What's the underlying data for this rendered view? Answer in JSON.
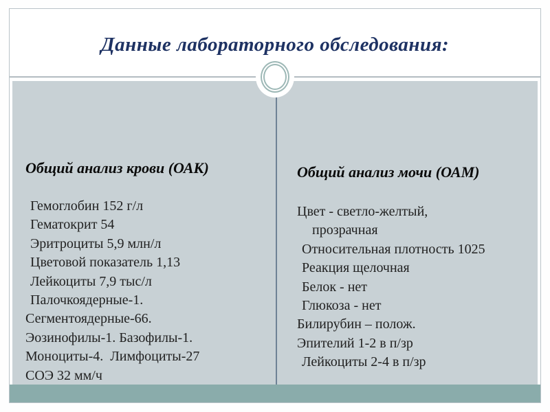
{
  "slide": {
    "title": "Данные лабораторного обследования:",
    "panels": {
      "left": {
        "heading": "Общий анализ крови (ОАК)",
        "lines": [
          "Гемоглобин 152 г/л",
          "Гематокрит 54",
          "Эритроциты 5,9 млн/л",
          "Цветовой показатель 1,13",
          "Лейкоциты 7,9 тыс/л",
          "Палочкоядерные-1.",
          "Сегментоядерные-66.",
          "Эозинофилы-1. Базофилы-1.",
          "Моноциты-4.  Лимфоциты-27",
          "СОЭ 32 мм/ч"
        ]
      },
      "right": {
        "heading": "Общий анализ мочи (ОАМ)",
        "lines": [
          "Цвет - светло-желтый,",
          "прозрачная",
          "Относительная плотность 1025",
          "Реакция щелочная",
          "Белок - нет",
          "Глюкоза - нет",
          "Билирубин – полож.",
          "Эпителий 1-2 в п/зр",
          "Лейкоциты 2-4 в п/зр"
        ]
      }
    },
    "colors": {
      "title_text": "#1e3263",
      "heading_text": "#0a0a0a",
      "body_text": "#212121",
      "panel_bg": "#c8d1d5",
      "footer_band": "#8aacab",
      "frame_border": "#b9c3c8",
      "title_rule": "#b3bcc1",
      "column_divider": "#6e8295",
      "ornament_ring": "#9db8b6"
    }
  }
}
